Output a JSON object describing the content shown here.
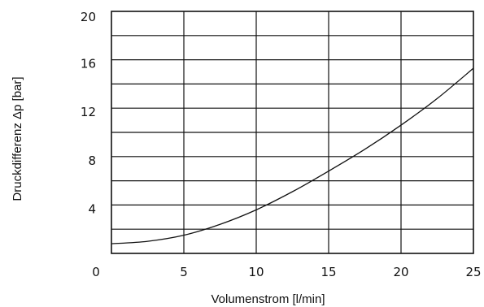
{
  "chart_data": {
    "type": "line",
    "title": "",
    "xlabel": "Volumenstrom [l/min]",
    "ylabel": "Druckdifferenz Δp [bar]",
    "xlim": [
      0,
      25
    ],
    "ylim": [
      0,
      20
    ],
    "x_ticks": [
      0,
      5,
      10,
      15,
      20,
      25
    ],
    "x_tick_labels": [
      "0",
      "5",
      "10",
      "15",
      "20",
      "25"
    ],
    "y_ticks": [
      4,
      8,
      12,
      16,
      20
    ],
    "y_tick_labels": [
      "4",
      "8",
      "12",
      "16",
      "20"
    ],
    "y_grid_step": 2,
    "grid": true,
    "series": [
      {
        "x": [
          0,
          2.5,
          5,
          7.5,
          10,
          12.5,
          15,
          17.5,
          20,
          22.5,
          25
        ],
        "y": [
          0.8,
          1.0,
          1.5,
          2.4,
          3.6,
          5.1,
          6.8,
          8.6,
          10.6,
          12.8,
          15.3
        ]
      }
    ]
  }
}
